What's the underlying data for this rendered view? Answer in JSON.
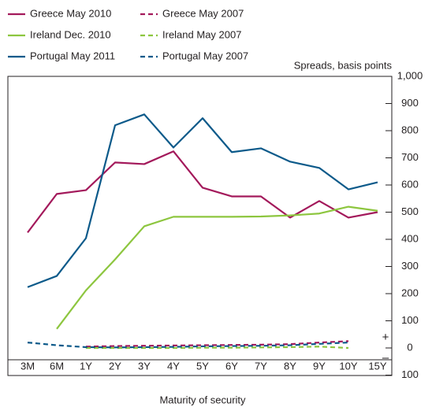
{
  "chart_data": {
    "type": "line",
    "y_axis_label": "Spreads, basis points",
    "x_axis_label": "Maturity of security",
    "annotations": [
      "+",
      "–"
    ],
    "categories": [
      "3M",
      "6M",
      "1Y",
      "2Y",
      "3Y",
      "4Y",
      "5Y",
      "6Y",
      "7Y",
      "8Y",
      "9Y",
      "10Y",
      "15Y"
    ],
    "ylim": [
      -100,
      1000
    ],
    "yticks": [
      {
        "value": -100,
        "label": "100"
      },
      0,
      100,
      200,
      300,
      400,
      500,
      600,
      700,
      800,
      900,
      {
        "value": 1000,
        "label": "1,000"
      }
    ],
    "series": [
      {
        "name": "Greece May 2010",
        "color": "#a3195b",
        "dashed": false,
        "values": [
          425,
          567,
          581,
          683,
          677,
          724,
          590,
          558,
          558,
          480,
          541,
          480,
          500
        ]
      },
      {
        "name": "Ireland Dec. 2010",
        "color": "#8dc63f",
        "dashed": false,
        "values": [
          null,
          70,
          212,
          326,
          448,
          483,
          483,
          483,
          484,
          488,
          495,
          520,
          505
        ]
      },
      {
        "name": "Portugal May 2011",
        "color": "#0c5a8a",
        "dashed": false,
        "values": [
          224,
          265,
          404,
          820,
          860,
          738,
          846,
          721,
          735,
          686,
          663,
          584,
          610
        ]
      },
      {
        "name": "Greece May 2007",
        "color": "#a3195b",
        "dashed": true,
        "values": [
          null,
          null,
          5,
          7,
          8,
          9,
          10,
          11,
          12,
          14,
          20,
          25,
          null
        ]
      },
      {
        "name": "Ireland May 2007",
        "color": "#8dc63f",
        "dashed": true,
        "values": [
          null,
          null,
          0,
          0,
          0,
          0,
          1,
          1,
          2,
          3,
          5,
          0,
          null
        ]
      },
      {
        "name": "Portugal May 2007",
        "color": "#0c5a8a",
        "dashed": true,
        "values": [
          20,
          10,
          3,
          2,
          3,
          4,
          6,
          7,
          8,
          10,
          15,
          20,
          null
        ]
      }
    ]
  }
}
